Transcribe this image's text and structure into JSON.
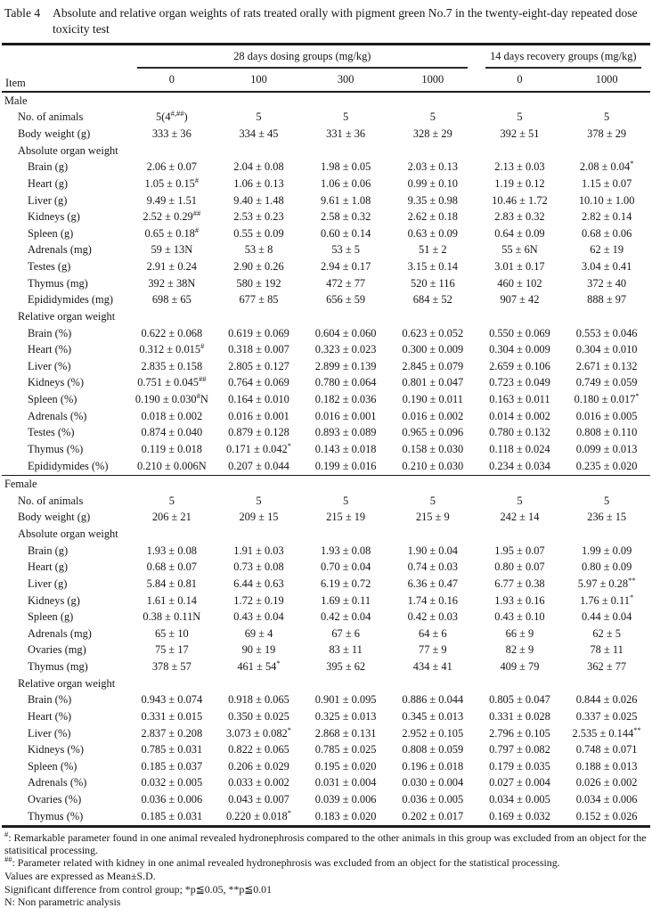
{
  "title": {
    "label": "Table 4",
    "caption": "Absolute and relative organ weights of rats treated orally with pigment green No.7 in the twenty-eight-day repeated dose toxicity test"
  },
  "table": {
    "item_header": "Item",
    "groups": [
      {
        "label": "28 days dosing groups (mg/kg)",
        "span": 4
      },
      {
        "label": "14 days recovery groups (mg/kg)",
        "span": 2
      }
    ],
    "doses": [
      "0",
      "100",
      "300",
      "1000",
      "0",
      "1000"
    ],
    "sections": [
      {
        "label": "Male",
        "rows": [
          {
            "label": "No. of animals",
            "indent": 1,
            "values": [
              "5(4^#,##^)",
              "5",
              "5",
              "5",
              "5",
              "5"
            ]
          },
          {
            "label": "Body weight (g)",
            "indent": 1,
            "values": [
              "333 ± 36",
              "334 ± 45",
              "331 ± 36",
              "328 ± 29",
              "392 ± 51",
              "378 ± 29"
            ]
          },
          {
            "label": "Absolute organ weight",
            "indent": 1,
            "values": [
              "",
              "",
              "",
              "",
              "",
              ""
            ]
          },
          {
            "label": "Brain (g)",
            "indent": 2,
            "values": [
              "2.06 ± 0.07",
              "2.04 ± 0.08",
              "1.98 ± 0.05",
              "2.03 ± 0.13",
              "2.13 ± 0.03",
              "2.08 ± 0.04^*^"
            ]
          },
          {
            "label": "Heart (g)",
            "indent": 2,
            "values": [
              "1.05 ± 0.15^#^",
              "1.06 ± 0.13",
              "1.06 ± 0.06",
              "0.99 ± 0.10",
              "1.19 ± 0.12",
              "1.15 ± 0.07"
            ]
          },
          {
            "label": "Liver (g)",
            "indent": 2,
            "values": [
              "9.49 ± 1.51",
              "9.40 ± 1.48",
              "9.61 ± 1.08",
              "9.35 ± 0.98",
              "10.46 ± 1.72",
              "10.10 ± 1.00"
            ]
          },
          {
            "label": "Kidneys (g)",
            "indent": 2,
            "values": [
              "2.52 ± 0.29^##^",
              "2.53 ± 0.23",
              "2.58 ± 0.32",
              "2.62 ± 0.18",
              "2.83 ± 0.32",
              "2.82 ± 0.14"
            ]
          },
          {
            "label": "Spleen (g)",
            "indent": 2,
            "values": [
              "0.65 ± 0.18^#^",
              "0.55 ± 0.09",
              "0.60 ± 0.14",
              "0.63 ± 0.09",
              "0.64 ± 0.09",
              "0.68 ± 0.06"
            ]
          },
          {
            "label": "Adrenals (mg)",
            "indent": 2,
            "values": [
              "59 ± 13N",
              "53 ± 8",
              "53 ± 5",
              "51 ± 2",
              "55 ± 6N",
              "62 ± 19"
            ]
          },
          {
            "label": "Testes (g)",
            "indent": 2,
            "values": [
              "2.91 ± 0.24",
              "2.90 ± 0.26",
              "2.94 ± 0.17",
              "3.15 ± 0.14",
              "3.01 ± 0.17",
              "3.04 ± 0.41"
            ]
          },
          {
            "label": "Thymus (mg)",
            "indent": 2,
            "values": [
              "392 ± 38N",
              "580 ± 192",
              "472 ± 77",
              "520 ± 116",
              "460 ± 102",
              "372 ± 40"
            ]
          },
          {
            "label": "Epididymides (mg)",
            "indent": 2,
            "values": [
              "698 ± 65",
              "677 ± 85",
              "656 ± 59",
              "684 ± 52",
              "907 ± 42",
              "888 ± 97"
            ]
          },
          {
            "label": "Relative organ weight",
            "indent": 1,
            "values": [
              "",
              "",
              "",
              "",
              "",
              ""
            ]
          },
          {
            "label": "Brain (%)",
            "indent": 2,
            "values": [
              "0.622 ± 0.068",
              "0.619 ± 0.069",
              "0.604 ± 0.060",
              "0.623 ± 0.052",
              "0.550 ± 0.069",
              "0.553 ± 0.046"
            ]
          },
          {
            "label": "Heart (%)",
            "indent": 2,
            "values": [
              "0.312 ± 0.015^#^",
              "0.318 ± 0.007",
              "0.323 ± 0.023",
              "0.300 ± 0.009",
              "0.304 ± 0.009",
              "0.304 ± 0.010"
            ]
          },
          {
            "label": "Liver (%)",
            "indent": 2,
            "values": [
              "2.835 ± 0.158",
              "2.805 ± 0.127",
              "2.899 ± 0.139",
              "2.845 ± 0.079",
              "2.659 ± 0.106",
              "2.671 ± 0.132"
            ]
          },
          {
            "label": "Kidneys (%)",
            "indent": 2,
            "values": [
              "0.751 ± 0.045^##^",
              "0.764 ± 0.069",
              "0.780 ± 0.064",
              "0.801 ± 0.047",
              "0.723 ± 0.049",
              "0.749 ± 0.059"
            ]
          },
          {
            "label": "Spleen (%)",
            "indent": 2,
            "values": [
              "0.190 ± 0.030^#^N",
              "0.164 ± 0.010",
              "0.182 ± 0.036",
              "0.190 ± 0.011",
              "0.163 ± 0.011",
              "0.180 ± 0.017^*^"
            ]
          },
          {
            "label": "Adrenals (%)",
            "indent": 2,
            "values": [
              "0.018 ± 0.002",
              "0.016 ± 0.001",
              "0.016 ± 0.001",
              "0.016 ± 0.002",
              "0.014 ± 0.002",
              "0.016 ± 0.005"
            ]
          },
          {
            "label": "Testes (%)",
            "indent": 2,
            "values": [
              "0.874 ± 0.040",
              "0.879 ± 0.128",
              "0.893 ± 0.089",
              "0.965 ± 0.096",
              "0.780 ± 0.132",
              "0.808 ± 0.110"
            ]
          },
          {
            "label": "Thymus (%)",
            "indent": 2,
            "values": [
              "0.119 ± 0.018",
              "0.171 ± 0.042^*^",
              "0.143 ± 0.018",
              "0.158 ± 0.030",
              "0.118 ± 0.024",
              "0.099 ± 0.013"
            ]
          },
          {
            "label": "Epididymides (%)",
            "indent": 2,
            "values": [
              "0.210 ± 0.006N",
              "0.207 ± 0.044",
              "0.199 ± 0.016",
              "0.210 ± 0.030",
              "0.234 ± 0.034",
              "0.235 ± 0.020"
            ]
          }
        ]
      },
      {
        "label": "Female",
        "rows": [
          {
            "label": "No. of animals",
            "indent": 1,
            "values": [
              "5",
              "5",
              "5",
              "5",
              "5",
              "5"
            ]
          },
          {
            "label": "Body weight (g)",
            "indent": 1,
            "values": [
              "206 ± 21",
              "209 ± 15",
              "215 ± 19",
              "215 ± 9",
              "242 ± 14",
              "236 ± 15"
            ]
          },
          {
            "label": "Absolute organ weight",
            "indent": 1,
            "values": [
              "",
              "",
              "",
              "",
              "",
              ""
            ]
          },
          {
            "label": "Brain (g)",
            "indent": 2,
            "values": [
              "1.93 ± 0.08",
              "1.91 ± 0.03",
              "1.93 ± 0.08",
              "1.90 ± 0.04",
              "1.95 ± 0.07",
              "1.99 ± 0.09"
            ]
          },
          {
            "label": "Heart (g)",
            "indent": 2,
            "values": [
              "0.68 ± 0.07",
              "0.73 ± 0.08",
              "0.70 ± 0.04",
              "0.74 ± 0.03",
              "0.80 ± 0.07",
              "0.80 ± 0.09"
            ]
          },
          {
            "label": "Liver (g)",
            "indent": 2,
            "values": [
              "5.84 ± 0.81",
              "6.44 ± 0.63",
              "6.19 ± 0.72",
              "6.36 ± 0.47",
              "6.77 ± 0.38",
              "5.97 ± 0.28^**^"
            ]
          },
          {
            "label": "Kidneys (g)",
            "indent": 2,
            "values": [
              "1.61 ± 0.14",
              "1.72 ± 0.19",
              "1.69 ± 0.11",
              "1.74 ± 0.16",
              "1.93 ± 0.16",
              "1.76 ± 0.11^*^"
            ]
          },
          {
            "label": "Spleen (g)",
            "indent": 2,
            "values": [
              "0.38 ± 0.11N",
              "0.43 ± 0.04",
              "0.42 ± 0.04",
              "0.42 ± 0.03",
              "0.43 ± 0.10",
              "0.44 ± 0.04"
            ]
          },
          {
            "label": "Adrenals (mg)",
            "indent": 2,
            "values": [
              "65 ± 10",
              "69 ± 4",
              "67 ± 6",
              "64 ± 6",
              "66 ± 9",
              "62 ± 5"
            ]
          },
          {
            "label": "Ovaries (mg)",
            "indent": 2,
            "values": [
              "75 ± 17",
              "90 ± 19",
              "83 ± 11",
              "77 ± 9",
              "82 ± 9",
              "78 ± 11"
            ]
          },
          {
            "label": "Thymus (mg)",
            "indent": 2,
            "values": [
              "378 ± 57",
              "461 ± 54^*^",
              "395 ± 62",
              "434 ± 41",
              "409 ± 79",
              "362 ± 77"
            ]
          },
          {
            "label": "Relative organ weight",
            "indent": 1,
            "values": [
              "",
              "",
              "",
              "",
              "",
              ""
            ]
          },
          {
            "label": "Brain (%)",
            "indent": 2,
            "values": [
              "0.943 ± 0.074",
              "0.918 ± 0.065",
              "0.901 ± 0.095",
              "0.886 ± 0.044",
              "0.805 ± 0.047",
              "0.844 ± 0.026"
            ]
          },
          {
            "label": "Heart (%)",
            "indent": 2,
            "values": [
              "0.331 ± 0.015",
              "0.350 ± 0.025",
              "0.325 ± 0.013",
              "0.345 ± 0.013",
              "0.331 ± 0.028",
              "0.337 ± 0.025"
            ]
          },
          {
            "label": "Liver (%)",
            "indent": 2,
            "values": [
              "2.837 ± 0.208",
              "3.073 ± 0.082^*^",
              "2.868 ± 0.131",
              "2.952 ± 0.105",
              "2.796 ± 0.105",
              "2.535 ± 0.144^**^"
            ]
          },
          {
            "label": "Kidneys (%)",
            "indent": 2,
            "values": [
              "0.785 ± 0.031",
              "0.822 ± 0.065",
              "0.785 ± 0.025",
              "0.808 ± 0.059",
              "0.797 ± 0.082",
              "0.748 ± 0.071"
            ]
          },
          {
            "label": "Spleen (%)",
            "indent": 2,
            "values": [
              "0.185 ± 0.037",
              "0.206 ± 0.029",
              "0.195 ± 0.020",
              "0.196 ± 0.018",
              "0.179 ± 0.035",
              "0.188 ± 0.013"
            ]
          },
          {
            "label": "Adrenals (%)",
            "indent": 2,
            "values": [
              "0.032 ± 0.005",
              "0.033 ± 0.002",
              "0.031 ± 0.004",
              "0.030 ± 0.004",
              "0.027 ± 0.004",
              "0.026 ± 0.002"
            ]
          },
          {
            "label": "Ovaries (%)",
            "indent": 2,
            "values": [
              "0.036 ± 0.006",
              "0.043 ± 0.007",
              "0.039 ± 0.006",
              "0.036 ± 0.005",
              "0.034 ± 0.005",
              "0.034 ± 0.006"
            ]
          },
          {
            "label": "Thymus (%)",
            "indent": 2,
            "values": [
              "0.185 ± 0.031",
              "0.220 ± 0.018^*^",
              "0.183 ± 0.020",
              "0.202 ± 0.017",
              "0.169 ± 0.032",
              "0.152 ± 0.026"
            ]
          }
        ]
      }
    ]
  },
  "footnotes": [
    "^#^: Remarkable parameter found in one animal revealed hydronephrosis compared to the other animals in this group was excluded from an object for the statisitical processing.",
    "^##^: Parameter related with kidney in one animal revealed hydronephrosis was excluded from an object for the statistical processing.",
    "Values are expressed as Mean±S.D.",
    "Significant difference from control group; *p≦0.05, **p≦0.01",
    "N: Non parametric analysis"
  ]
}
